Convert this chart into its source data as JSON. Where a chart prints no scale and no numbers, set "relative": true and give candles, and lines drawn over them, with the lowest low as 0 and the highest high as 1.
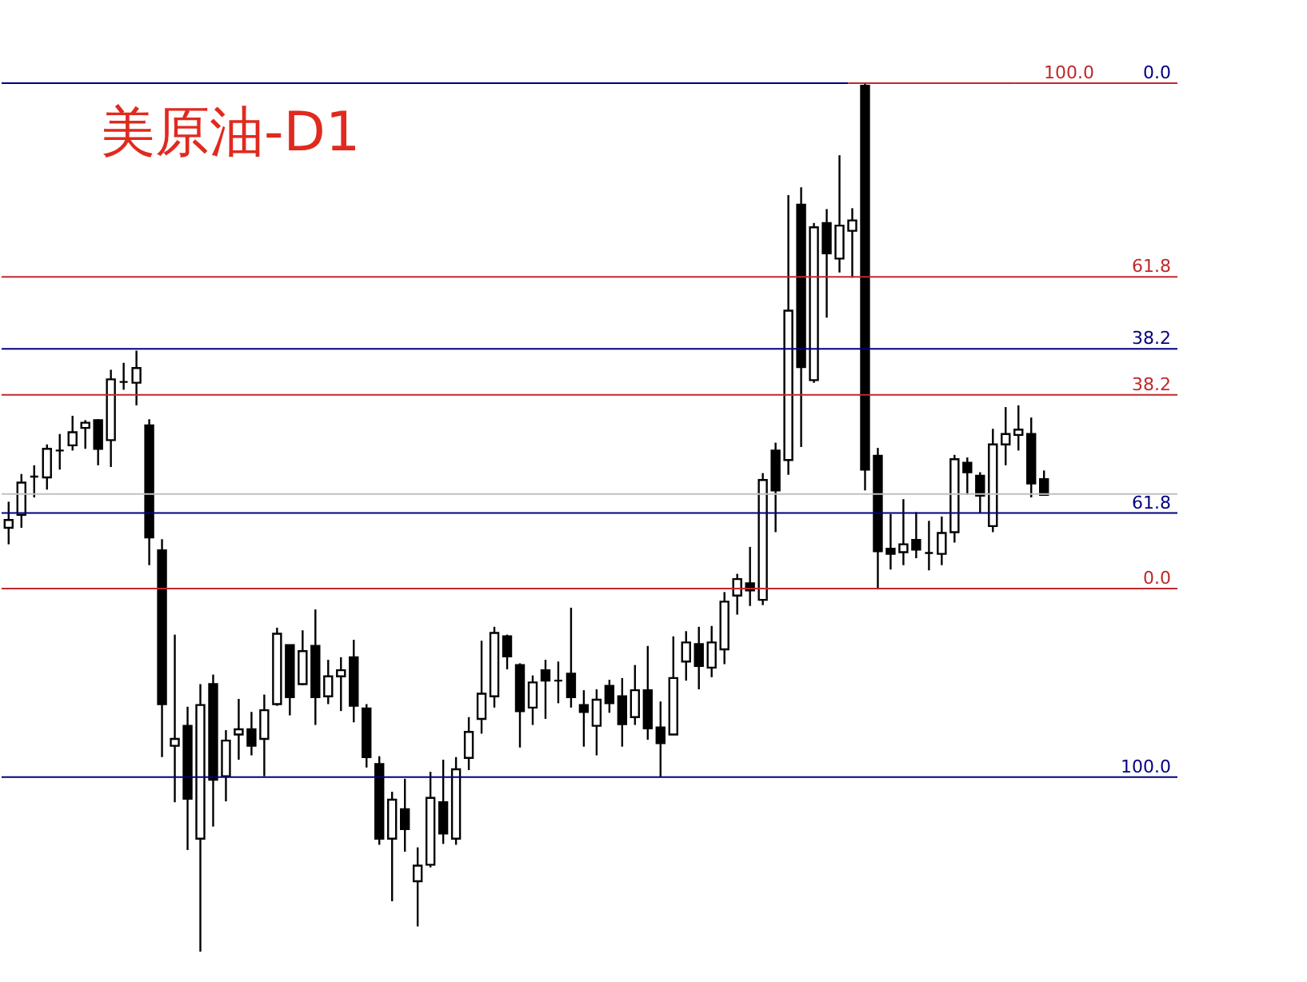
{
  "chart_data": {
    "type": "candlestick",
    "title": "美原油-D1",
    "relative": true,
    "categories": [
      null,
      null,
      null,
      null,
      null,
      null,
      null,
      null,
      null,
      null,
      null,
      null,
      null,
      null,
      null,
      null,
      null,
      null,
      null,
      null,
      null,
      null,
      null,
      null,
      null,
      null,
      null,
      null,
      null,
      null,
      null,
      null,
      null,
      null,
      null,
      null,
      null,
      null,
      null,
      null,
      null,
      null,
      null,
      null,
      null,
      null,
      null,
      null,
      null,
      null,
      null,
      null,
      null,
      null,
      null,
      null,
      null,
      null,
      null,
      null,
      null,
      null,
      null,
      null,
      null,
      null,
      null,
      null,
      null,
      null,
      null,
      null,
      null,
      null,
      null,
      null,
      null,
      null,
      null,
      null,
      null,
      null
    ],
    "ohlc": [
      [
        0.488,
        0.518,
        0.469,
        0.497
      ],
      [
        0.503,
        0.55,
        0.488,
        0.54
      ],
      [
        0.547,
        0.56,
        0.523,
        0.547
      ],
      [
        0.546,
        0.584,
        0.532,
        0.579
      ],
      [
        0.577,
        0.596,
        0.555,
        0.577
      ],
      [
        0.583,
        0.617,
        0.577,
        0.598
      ],
      [
        0.603,
        0.612,
        0.579,
        0.609
      ],
      [
        0.612,
        0.613,
        0.56,
        0.579
      ],
      [
        0.589,
        0.67,
        0.558,
        0.659
      ],
      [
        0.656,
        0.678,
        0.647,
        0.656
      ],
      [
        0.655,
        0.692,
        0.629,
        0.672
      ],
      [
        0.606,
        0.613,
        0.445,
        0.477
      ],
      [
        0.462,
        0.475,
        0.224,
        0.285
      ],
      [
        0.237,
        0.365,
        0.172,
        0.245
      ],
      [
        0.26,
        0.282,
        0.117,
        0.176
      ],
      [
        0.13,
        0.308,
        0.0,
        0.284
      ],
      [
        0.308,
        0.319,
        0.144,
        0.198
      ],
      [
        0.202,
        0.255,
        0.173,
        0.243
      ],
      [
        0.25,
        0.291,
        0.221,
        0.256
      ],
      [
        0.256,
        0.276,
        0.226,
        0.237
      ],
      [
        0.245,
        0.296,
        0.202,
        0.278
      ],
      [
        0.285,
        0.373,
        0.283,
        0.366
      ],
      [
        0.353,
        0.353,
        0.272,
        0.293
      ],
      [
        0.308,
        0.37,
        0.307,
        0.346
      ],
      [
        0.352,
        0.394,
        0.261,
        0.293
      ],
      [
        0.294,
        0.336,
        0.285,
        0.317
      ],
      [
        0.317,
        0.339,
        0.277,
        0.324
      ],
      [
        0.339,
        0.359,
        0.264,
        0.283
      ],
      [
        0.28,
        0.285,
        0.212,
        0.224
      ],
      [
        0.216,
        0.225,
        0.123,
        0.13
      ],
      [
        0.13,
        0.184,
        0.058,
        0.175
      ],
      [
        0.164,
        0.199,
        0.115,
        0.141
      ],
      [
        0.081,
        0.12,
        0.029,
        0.099
      ],
      [
        0.1,
        0.207,
        0.097,
        0.177
      ],
      [
        0.172,
        0.221,
        0.124,
        0.136
      ],
      [
        0.13,
        0.224,
        0.123,
        0.21
      ],
      [
        0.223,
        0.27,
        0.209,
        0.253
      ],
      [
        0.268,
        0.358,
        0.251,
        0.297
      ],
      [
        0.294,
        0.374,
        0.281,
        0.367
      ],
      [
        0.363,
        0.365,
        0.325,
        0.34
      ],
      [
        0.33,
        0.332,
        0.235,
        0.277
      ],
      [
        0.281,
        0.318,
        0.261,
        0.31
      ],
      [
        0.324,
        0.336,
        0.268,
        0.312
      ],
      [
        0.312,
        0.334,
        0.286,
        0.312
      ],
      [
        0.32,
        0.396,
        0.281,
        0.293
      ],
      [
        0.284,
        0.301,
        0.236,
        0.276
      ],
      [
        0.26,
        0.302,
        0.226,
        0.29
      ],
      [
        0.306,
        0.313,
        0.275,
        0.286
      ],
      [
        0.294,
        0.315,
        0.236,
        0.262
      ],
      [
        0.27,
        0.33,
        0.261,
        0.301
      ],
      [
        0.301,
        0.352,
        0.244,
        0.257
      ],
      [
        0.258,
        0.288,
        0.201,
        0.24
      ],
      [
        0.25,
        0.363,
        0.25,
        0.315
      ],
      [
        0.334,
        0.369,
        0.312,
        0.356
      ],
      [
        0.354,
        0.374,
        0.302,
        0.329
      ],
      [
        0.327,
        0.375,
        0.316,
        0.356
      ],
      [
        0.348,
        0.414,
        0.331,
        0.403
      ],
      [
        0.41,
        0.435,
        0.388,
        0.429
      ],
      [
        0.424,
        0.466,
        0.398,
        0.416
      ],
      [
        0.405,
        0.551,
        0.399,
        0.543
      ],
      [
        0.577,
        0.586,
        0.483,
        0.531
      ],
      [
        0.566,
        0.871,
        0.549,
        0.738
      ],
      [
        0.86,
        0.88,
        0.581,
        0.673
      ],
      [
        0.658,
        0.839,
        0.655,
        0.834
      ],
      [
        0.839,
        0.855,
        0.73,
        0.804
      ],
      [
        0.798,
        0.917,
        0.782,
        0.836
      ],
      [
        0.83,
        0.856,
        0.776,
        0.842
      ],
      [
        0.997,
        1.0,
        0.531,
        0.555
      ],
      [
        0.571,
        0.58,
        0.417,
        0.461
      ],
      [
        0.464,
        0.504,
        0.44,
        0.458
      ],
      [
        0.46,
        0.521,
        0.445,
        0.469
      ],
      [
        0.474,
        0.506,
        0.453,
        0.463
      ],
      [
        0.459,
        0.496,
        0.439,
        0.459
      ],
      [
        0.458,
        0.501,
        0.445,
        0.482
      ],
      [
        0.483,
        0.572,
        0.471,
        0.567
      ],
      [
        0.563,
        0.569,
        0.526,
        0.552
      ],
      [
        0.548,
        0.552,
        0.505,
        0.525
      ],
      [
        0.49,
        0.602,
        0.483,
        0.584
      ],
      [
        0.584,
        0.627,
        0.56,
        0.596
      ],
      [
        0.595,
        0.629,
        0.577,
        0.601
      ],
      [
        0.596,
        0.615,
        0.523,
        0.539
      ],
      [
        0.544,
        0.554,
        0.525,
        0.526
      ]
    ],
    "ref_lines": [
      {
        "axis": "y",
        "value": 1.0,
        "color": "#000080"
      },
      {
        "axis": "y",
        "value": 0.694,
        "color": "#000080"
      },
      {
        "axis": "y",
        "value": 0.505,
        "color": "#000080"
      },
      {
        "axis": "y",
        "value": 0.201,
        "color": "#000080"
      },
      {
        "axis": "y",
        "value": 1.0,
        "color": "#c0282d"
      },
      {
        "axis": "y",
        "value": 0.777,
        "color": "#c0282d"
      },
      {
        "axis": "y",
        "value": 0.641,
        "color": "#c0282d"
      },
      {
        "axis": "y",
        "value": 0.418,
        "color": "#c0282d"
      },
      {
        "axis": "y",
        "value": 0.527,
        "color": "#c0c0c0"
      }
    ],
    "annotations": [
      {
        "text": "0.0",
        "y": 1.0
      },
      {
        "text": "38.2",
        "y": 0.694
      },
      {
        "text": "61.8",
        "y": 0.505
      },
      {
        "text": "100.0",
        "y": 0.201
      },
      {
        "text": "100.0",
        "y": 1.0
      },
      {
        "text": "61.8",
        "y": 0.777
      },
      {
        "text": "38.2",
        "y": 0.641
      },
      {
        "text": "0.0",
        "y": 0.418
      }
    ]
  }
}
